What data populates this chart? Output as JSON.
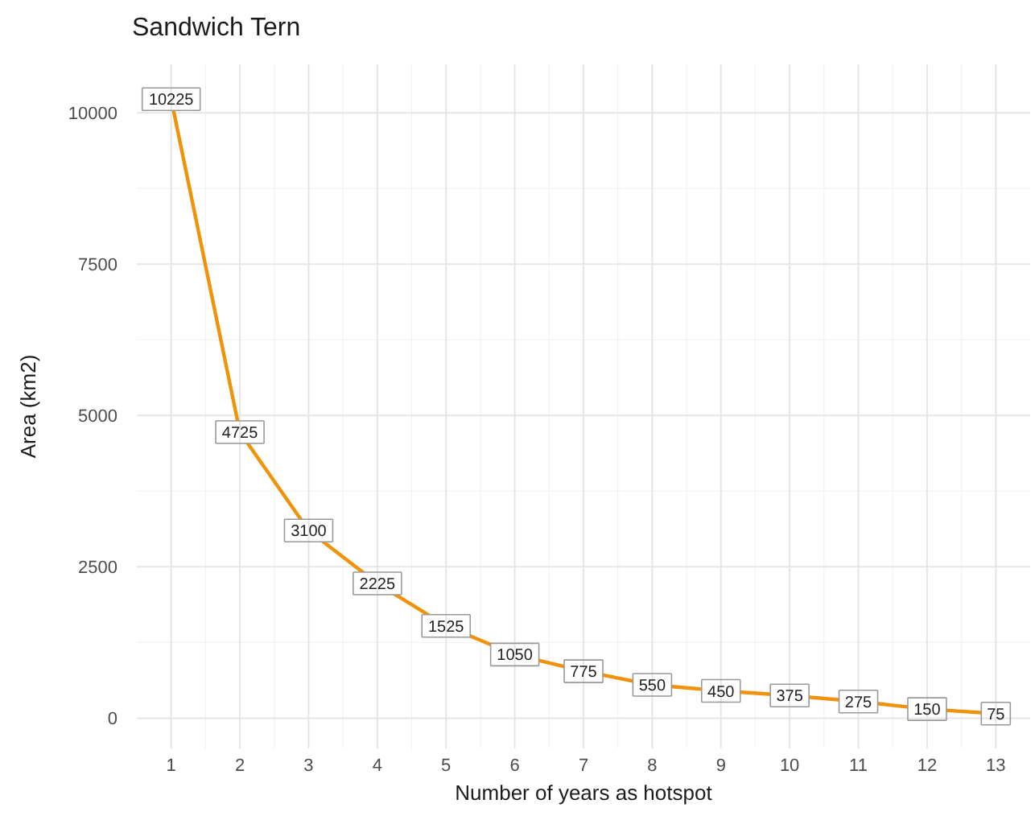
{
  "chart_data": {
    "type": "line",
    "title": "Sandwich Tern",
    "xlabel": "Number of years as hotspot",
    "ylabel": "Area (km2)",
    "x": [
      1,
      2,
      3,
      4,
      5,
      6,
      7,
      8,
      9,
      10,
      11,
      12,
      13
    ],
    "series": [
      {
        "color": "#f0920a",
        "values": [
          10225,
          4725,
          3100,
          2225,
          1525,
          1050,
          775,
          550,
          450,
          375,
          275,
          150,
          75
        ]
      }
    ],
    "xlim": [
      0.5,
      13.5
    ],
    "xticks": [
      1,
      2,
      3,
      4,
      5,
      6,
      7,
      8,
      9,
      10,
      11,
      12,
      13
    ],
    "ylim": [
      -500,
      10800
    ],
    "yticks": [
      0,
      2500,
      5000,
      7500,
      10000
    ],
    "grid": true,
    "data_labels": true,
    "marker": "none",
    "line_style": "solid"
  }
}
